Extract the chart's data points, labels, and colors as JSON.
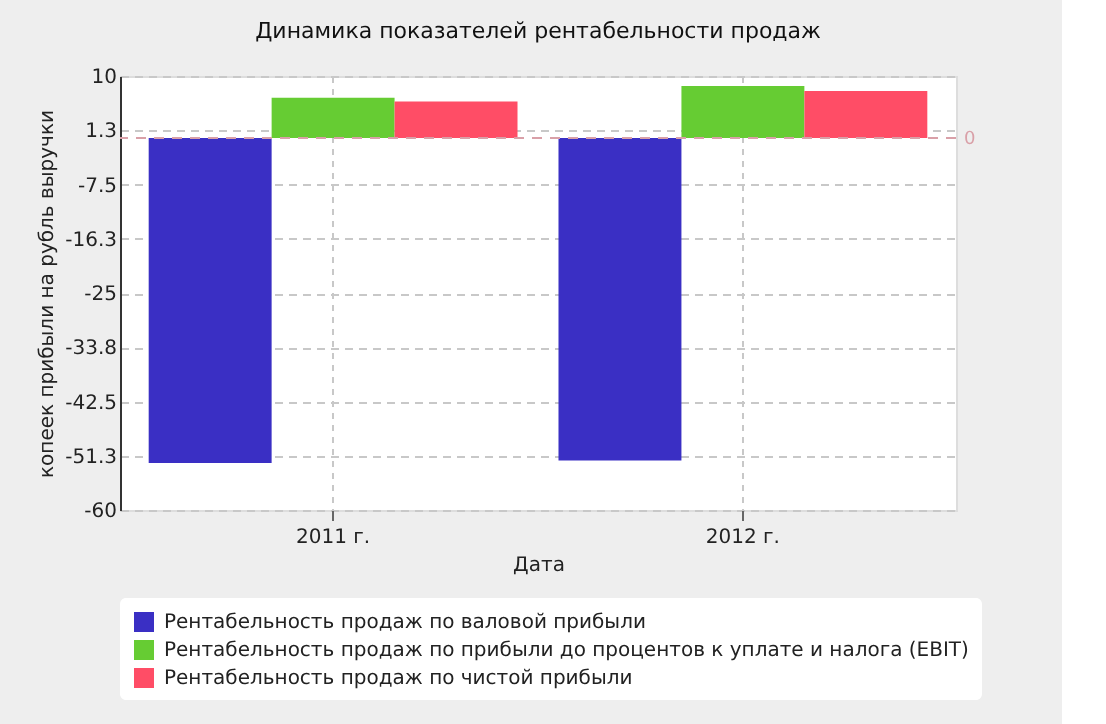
{
  "chart_data": {
    "type": "bar",
    "title": "Динамика показателей рентабельности продаж",
    "xlabel": "Дата",
    "ylabel": "копеек прибыли на рубль выручки",
    "categories": [
      "2011 г.",
      "2012 г."
    ],
    "series": [
      {
        "name": "Рентабельность продаж по валовой прибыли",
        "color": "#3a2fc4",
        "values": [
          -52.4,
          -52.0
        ]
      },
      {
        "name": "Рентабельность продаж по прибыли до процентов к уплате и налога (EBIT)",
        "color": "#66cc33",
        "values": [
          6.5,
          8.4
        ]
      },
      {
        "name": "Рентабельность продаж по чистой прибыли",
        "color": "#ff4d66",
        "values": [
          5.9,
          7.6
        ]
      }
    ],
    "ylim": [
      -60,
      10
    ],
    "yticks": [
      10,
      {
        "value": 1.25,
        "label": "1.3"
      },
      -7.5,
      {
        "value": -16.25,
        "label": "-16.3"
      },
      -25,
      {
        "value": -33.75,
        "label": "-33.8"
      },
      -42.5,
      {
        "value": -51.25,
        "label": "-51.3"
      },
      -60
    ],
    "ref_lines": [
      {
        "axis": "y",
        "value": 0,
        "label": "0",
        "color": "#d9a0a8",
        "line_style": "dashed"
      }
    ],
    "grid": true,
    "legend": "bottom"
  }
}
